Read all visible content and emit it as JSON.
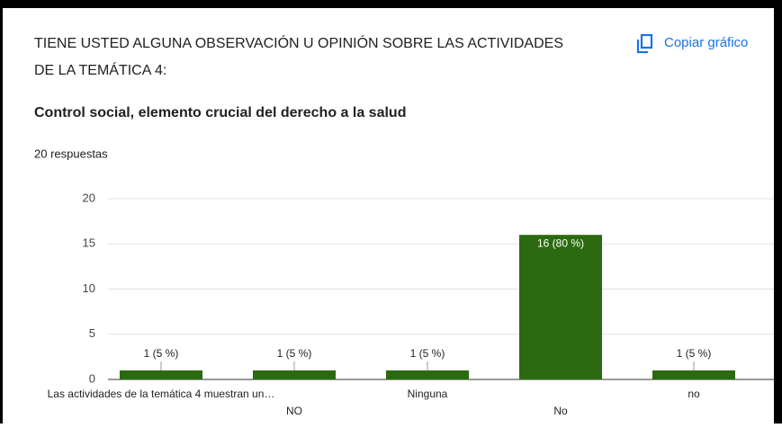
{
  "header": {
    "title_lines": [
      "TIENE  USTED ALGUNA OBSERVACIÓN U OPINIÓN SOBRE LAS ACTIVIDADES",
      "DE LA TEMÁTICA 4:"
    ],
    "copy_button": "Copiar gráfico",
    "subtitle": "Control social, elemento crucial del derecho a la salud",
    "responses": "20 respuestas"
  },
  "chart_data": {
    "type": "bar",
    "categories": [
      "Las actividades de la temática 4 muestran un…",
      "NO",
      "Ninguna",
      "No",
      "no"
    ],
    "values": [
      1,
      1,
      1,
      16,
      1
    ],
    "value_labels": [
      "1 (5 %)",
      "1 (5 %)",
      "1 (5 %)",
      "16 (80 %)",
      "1 (5 %)"
    ],
    "color": "#2b6a10",
    "ylim": [
      0,
      20
    ],
    "yticks": [
      0,
      5,
      10,
      15,
      20
    ],
    "grid": true
  }
}
